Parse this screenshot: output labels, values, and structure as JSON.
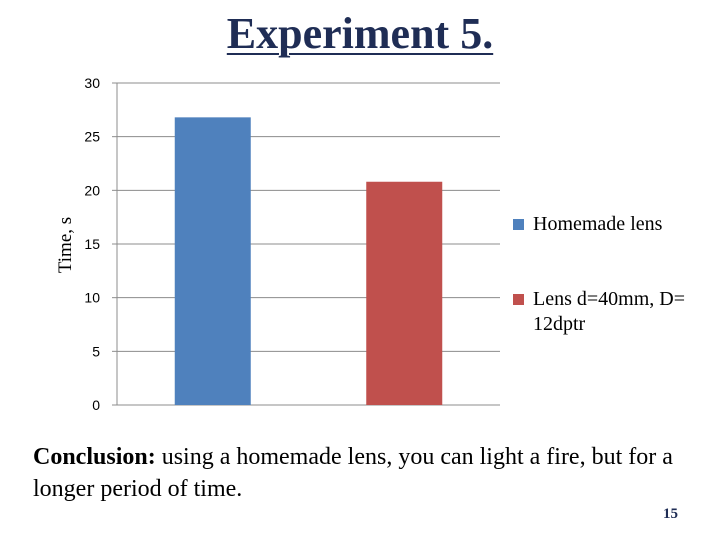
{
  "slide": {
    "title": "Experiment 5.",
    "conclusion_bold": "Conclusion:",
    "conclusion_text": " using a homemade lens, you can light a fire, but for a longer period of time.",
    "page_number": "15"
  },
  "chart_data": {
    "type": "bar",
    "ylabel": "Time, s",
    "xlabel": "",
    "ylim": [
      0,
      30
    ],
    "yticks": [
      0,
      5,
      10,
      15,
      20,
      25,
      30
    ],
    "grid": true,
    "legend_position": "right",
    "series": [
      {
        "name": "Homemade lens",
        "value": 26.8,
        "color": "#4f81bd"
      },
      {
        "name": "Lens d=40mm, D= 12dptr",
        "value": 20.8,
        "color": "#c0504d"
      }
    ]
  }
}
